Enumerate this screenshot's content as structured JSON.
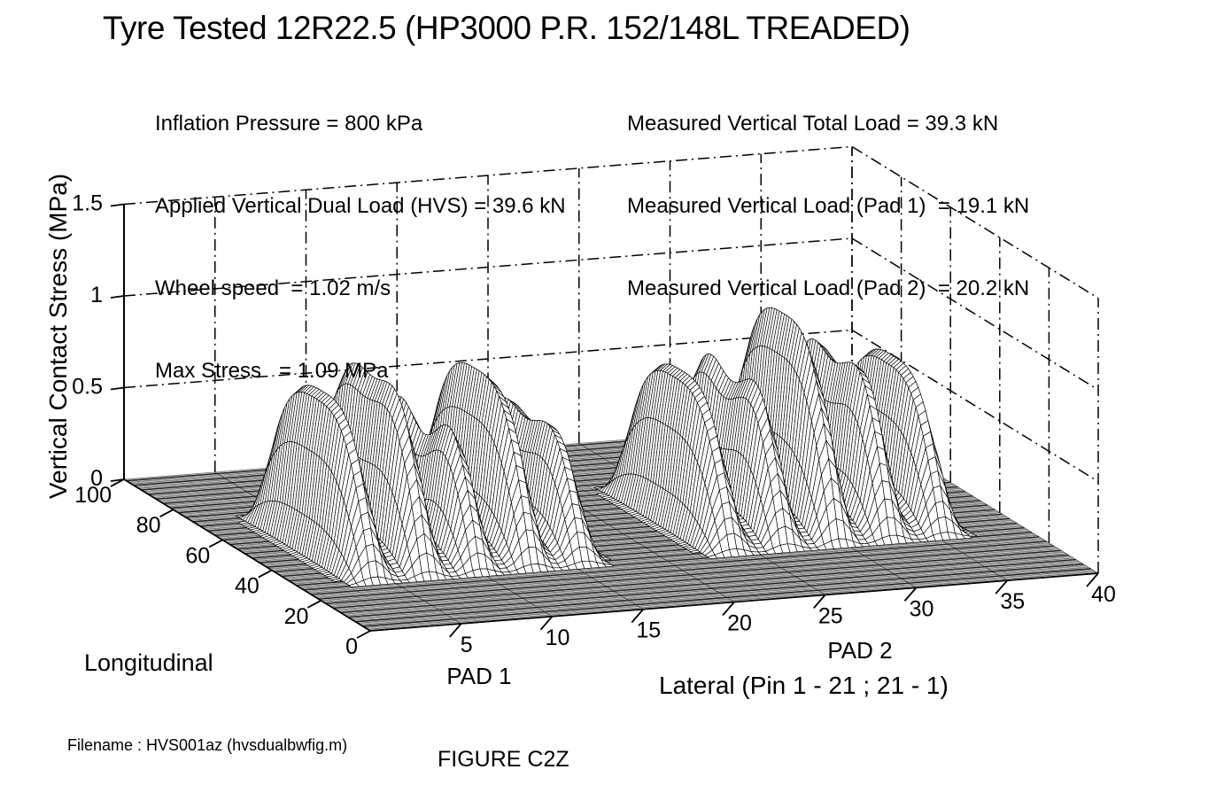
{
  "title": "Tyre Tested 12R22.5 (HP3000 P.R. 152/148L TREADED)",
  "info_left": {
    "lines": [
      "Inflation Pressure = 800 kPa",
      "Applied Vertical Dual Load (HVS) = 39.6 kN",
      "Wheel speed  = 1.02 m/s",
      "Max Stress   = 1.09 MPa"
    ]
  },
  "info_right": {
    "lines": [
      "Measured Vertical Total Load = 39.3 kN",
      "Measured Vertical Load (Pad 1)  = 19.1 kN",
      "Measured Vertical Load (Pad 2)  = 20.2 kN"
    ]
  },
  "footer": {
    "filename": "Filename : HVS001az (hvsdualbwfig.m)",
    "figure_caption": "FIGURE C2Z"
  },
  "chart_data": {
    "type": "surface",
    "title": "Tyre Tested 12R22.5 (HP3000 P.R. 152/148L TREADED)",
    "zlabel": "Vertical Contact Stress (MPa)",
    "ylabel": "Longitudinal",
    "xlabel": "Lateral (Pin 1 - 21 ; 21 - 1)",
    "x_range": [
      0,
      40
    ],
    "y_range": [
      0,
      100
    ],
    "z_range": [
      0,
      1.5
    ],
    "x_ticks": [
      5,
      10,
      15,
      20,
      25,
      30,
      35,
      40
    ],
    "y_ticks": [
      0,
      20,
      40,
      60,
      80,
      100
    ],
    "z_ticks": [
      0,
      0.5,
      1,
      1.5
    ],
    "origin_tick": 0,
    "grid_linestyle": "dash-dot",
    "legend": "none",
    "max_stress_mpa": 1.09,
    "colors": {
      "mesh_line": "#000000",
      "mesh_face": "#ffffff",
      "floor_fill": "#c3c3c3",
      "text": "#000000"
    },
    "pads": [
      {
        "name": "PAD 1",
        "long_center": 50,
        "long_half_length": 23,
        "rib_width": 3.1,
        "base_height": 0.14,
        "ribs": [
          {
            "center": 4.0,
            "height": 0.88,
            "saddle": 0
          },
          {
            "center": 6.9,
            "height": 1.02,
            "saddle": 0.1
          },
          {
            "center": 9.8,
            "height": 0.86,
            "saddle": 0.32
          },
          {
            "center": 12.7,
            "height": 0.94,
            "saddle": 0
          },
          {
            "center": 15.5,
            "height": 0.78,
            "saddle": 0.18
          }
        ]
      },
      {
        "name": "PAD 2",
        "long_center": 50,
        "long_half_length": 23,
        "rib_width": 3.1,
        "base_height": 0.14,
        "ribs": [
          {
            "center": 23.7,
            "height": 0.84,
            "saddle": 0
          },
          {
            "center": 26.6,
            "height": 0.95,
            "saddle": 0.22
          },
          {
            "center": 29.5,
            "height": 1.09,
            "saddle": 0
          },
          {
            "center": 32.4,
            "height": 1.0,
            "saddle": 0.18
          },
          {
            "center": 35.3,
            "height": 0.83,
            "saddle": 0
          }
        ]
      }
    ]
  }
}
